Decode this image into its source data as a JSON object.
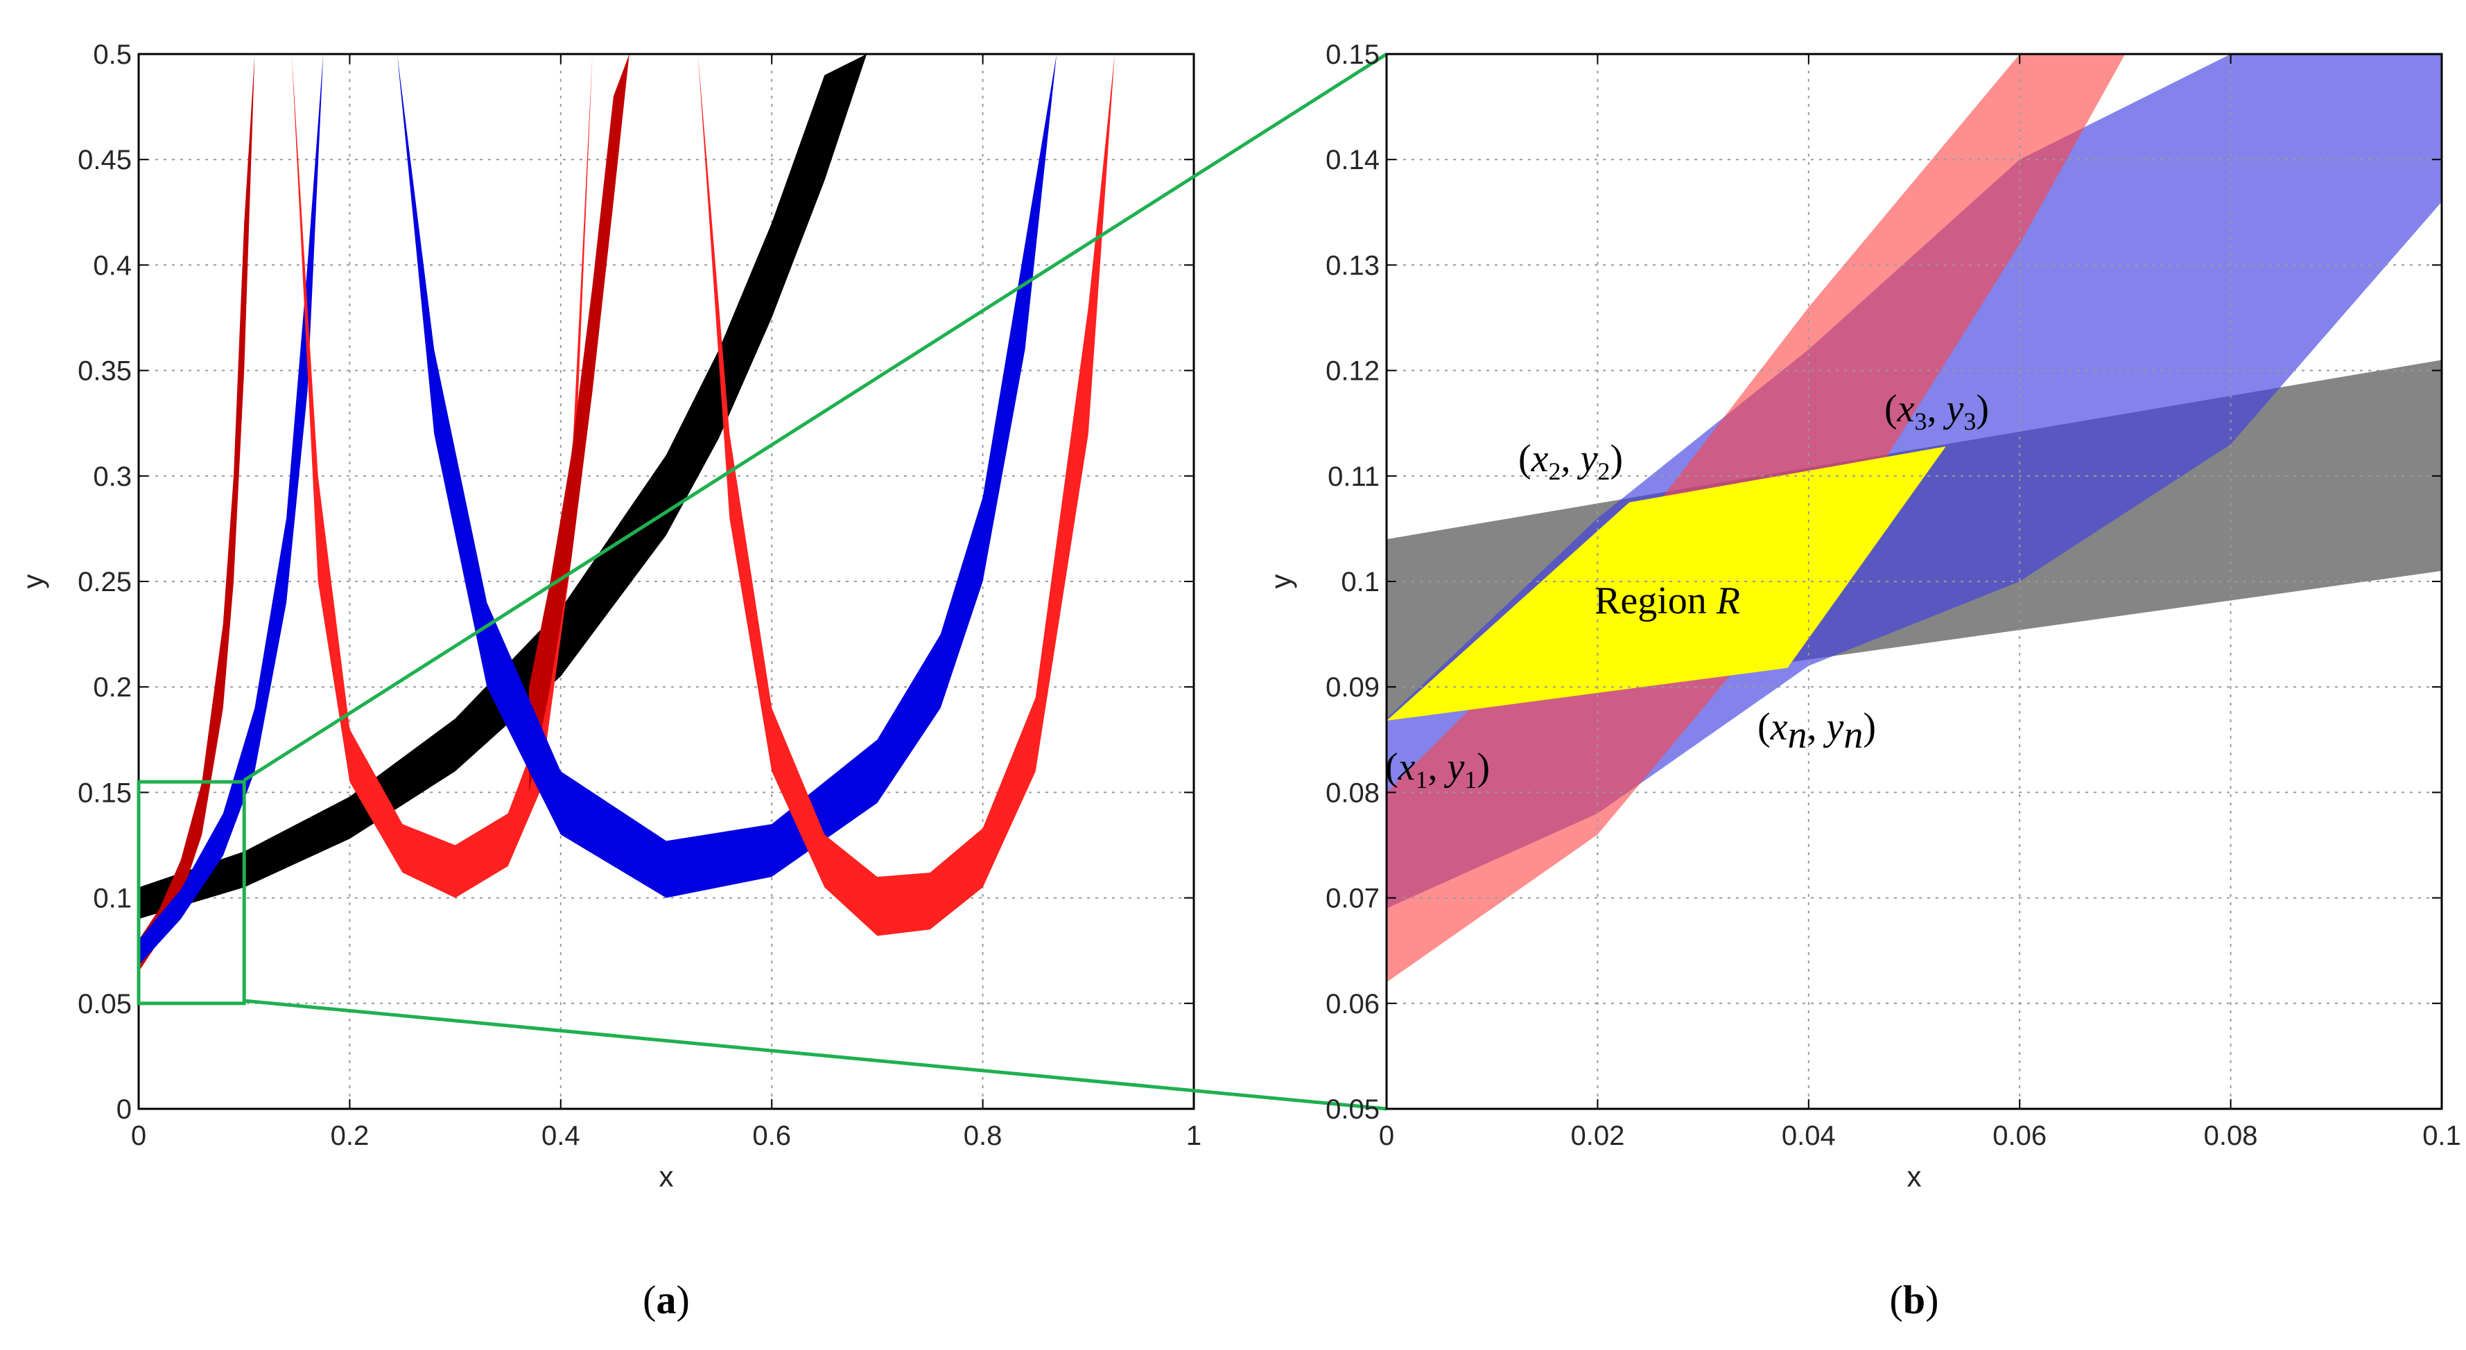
{
  "chart_data": [
    {
      "panel": "a",
      "type": "area",
      "caption": "a",
      "xlabel": "x",
      "ylabel": "y",
      "xlim": [
        0,
        1
      ],
      "ylim": [
        0,
        0.5
      ],
      "grid": true,
      "xticks": [
        "0",
        "0.2",
        "0.4",
        "0.6",
        "0.8",
        "1"
      ],
      "yticks": [
        "0",
        "0.05",
        "0.1",
        "0.15",
        "0.2",
        "0.25",
        "0.3",
        "0.35",
        "0.4",
        "0.45",
        "0.5"
      ],
      "colors": {
        "black": "#000000",
        "blue": "#0000e0",
        "red": "#ff1a1a",
        "darkred": "#c00000",
        "grid": "#9a9a9a",
        "zoombox": "#1fb050"
      },
      "series": [
        {
          "name": "black band",
          "color": "#000000",
          "x": [
            0,
            0.1,
            0.2,
            0.3,
            0.4,
            0.5,
            0.55,
            0.6,
            0.65,
            0.69
          ],
          "lower": [
            0.09,
            0.105,
            0.128,
            0.16,
            0.205,
            0.272,
            0.318,
            0.375,
            0.44,
            0.5
          ],
          "upper": [
            0.105,
            0.122,
            0.148,
            0.185,
            0.237,
            0.31,
            0.36,
            0.42,
            0.49,
            0.5
          ]
        },
        {
          "name": "dark red band 1",
          "color": "#c00000",
          "x": [
            0,
            0.02,
            0.04,
            0.06,
            0.08,
            0.09,
            0.1,
            0.11
          ],
          "lower": [
            0.065,
            0.08,
            0.1,
            0.13,
            0.19,
            0.25,
            0.35,
            0.5
          ],
          "upper": [
            0.08,
            0.095,
            0.118,
            0.155,
            0.23,
            0.3,
            0.42,
            0.5
          ]
        },
        {
          "name": "blue band 1",
          "color": "#0000e0",
          "x": [
            0,
            0.04,
            0.08,
            0.11,
            0.14,
            0.16,
            0.175
          ],
          "lower": [
            0.068,
            0.09,
            0.12,
            0.16,
            0.24,
            0.34,
            0.5
          ],
          "upper": [
            0.08,
            0.104,
            0.14,
            0.19,
            0.28,
            0.4,
            0.5
          ]
        },
        {
          "name": "red band (a)",
          "color": "#ff2020",
          "x": [
            0.145,
            0.17,
            0.2,
            0.25,
            0.3,
            0.35,
            0.38,
            0.41,
            0.43
          ],
          "lower": [
            0.5,
            0.25,
            0.155,
            0.112,
            0.1,
            0.115,
            0.15,
            0.26,
            0.5
          ],
          "upper": [
            0.5,
            0.3,
            0.18,
            0.135,
            0.125,
            0.14,
            0.18,
            0.3,
            0.5
          ]
        },
        {
          "name": "dark red band 2",
          "color": "#c00000",
          "x": [
            0.37,
            0.39,
            0.41,
            0.43,
            0.45,
            0.465
          ],
          "lower": [
            0.15,
            0.2,
            0.26,
            0.34,
            0.43,
            0.5
          ],
          "upper": [
            0.2,
            0.25,
            0.31,
            0.39,
            0.48,
            0.5
          ]
        },
        {
          "name": "blue band 2",
          "color": "#0000e0",
          "x": [
            0.245,
            0.28,
            0.33,
            0.4,
            0.5,
            0.6,
            0.7,
            0.76,
            0.8,
            0.84,
            0.87
          ],
          "lower": [
            0.5,
            0.32,
            0.2,
            0.13,
            0.1,
            0.11,
            0.145,
            0.19,
            0.25,
            0.36,
            0.5
          ],
          "upper": [
            0.5,
            0.36,
            0.24,
            0.16,
            0.127,
            0.135,
            0.175,
            0.225,
            0.29,
            0.41,
            0.5
          ]
        },
        {
          "name": "red band (b)",
          "color": "#ff2020",
          "x": [
            0.53,
            0.56,
            0.6,
            0.65,
            0.7,
            0.75,
            0.8,
            0.85,
            0.9,
            0.925
          ],
          "lower": [
            0.5,
            0.28,
            0.16,
            0.105,
            0.082,
            0.085,
            0.105,
            0.16,
            0.32,
            0.5
          ],
          "upper": [
            0.5,
            0.32,
            0.19,
            0.13,
            0.11,
            0.112,
            0.133,
            0.195,
            0.38,
            0.5
          ]
        }
      ],
      "zoom_box": {
        "x": [
          0,
          0.1
        ],
        "y": [
          0.05,
          0.155
        ]
      }
    },
    {
      "panel": "b",
      "type": "area",
      "caption": "b",
      "xlabel": "x",
      "ylabel": "y",
      "xlim": [
        0,
        0.1
      ],
      "ylim": [
        0.05,
        0.15
      ],
      "grid": true,
      "xticks": [
        "0",
        "0.02",
        "0.04",
        "0.06",
        "0.08",
        "0.1"
      ],
      "yticks": [
        "0.05",
        "0.06",
        "0.07",
        "0.08",
        "0.09",
        "0.1",
        "0.11",
        "0.12",
        "0.13",
        "0.14",
        "0.15"
      ],
      "series": [
        {
          "name": "gray band",
          "color": "#707070",
          "opacity": 0.85,
          "x": [
            0,
            0.1
          ],
          "lower": [
            0.087,
            0.101
          ],
          "upper": [
            0.104,
            0.121
          ]
        },
        {
          "name": "blue band",
          "color": "#4040e0",
          "opacity": 0.65,
          "x": [
            0,
            0.02,
            0.04,
            0.06,
            0.08,
            0.1
          ],
          "lower": [
            0.069,
            0.078,
            0.092,
            0.1,
            0.113,
            0.136
          ],
          "upper": [
            0.087,
            0.106,
            0.122,
            0.14,
            0.15,
            0.15
          ]
        },
        {
          "name": "red band",
          "color": "#ff4444",
          "opacity": 0.6,
          "x": [
            0,
            0.02,
            0.04,
            0.06,
            0.07
          ],
          "lower": [
            0.062,
            0.076,
            0.1,
            0.132,
            0.15
          ],
          "upper": [
            0.08,
            0.1,
            0.126,
            0.15,
            0.15
          ]
        },
        {
          "name": "Region R",
          "color": "#ffff00",
          "opacity": 1,
          "polygon_x": [
            0,
            0.023,
            0.053,
            0.038
          ],
          "polygon_y": [
            0.0868,
            0.1075,
            0.1128,
            0.0918
          ]
        }
      ],
      "annotations": {
        "region": {
          "prefix": "Region ",
          "var": "R"
        },
        "p1": {
          "open": "(",
          "x": "x",
          "xs": "1",
          "comma": ", ",
          "y": "y",
          "ys": "1",
          "close": ")"
        },
        "p2": {
          "open": "(",
          "x": "x",
          "xs": "2",
          "comma": ", ",
          "y": "y",
          "ys": "2",
          "close": ")"
        },
        "p3": {
          "open": "(",
          "x": "x",
          "xs": "3",
          "comma": ", ",
          "y": "y",
          "ys": "3",
          "close": ")"
        },
        "pn": {
          "open": "(",
          "x": "x",
          "xs": "n",
          "comma": ", ",
          "y": "y",
          "ys": "n",
          "close": ")"
        }
      }
    }
  ]
}
